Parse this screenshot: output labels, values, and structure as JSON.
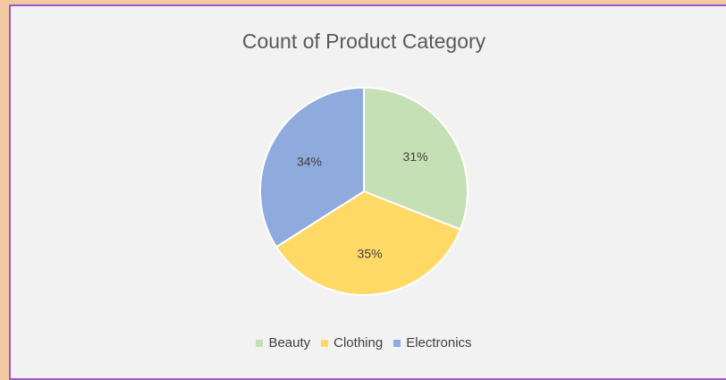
{
  "chart_data": {
    "type": "pie",
    "title": "Count of Product Category",
    "categories": [
      "Beauty",
      "Clothing",
      "Electronics"
    ],
    "values": [
      31,
      35,
      34
    ],
    "labels": [
      "31%",
      "35%",
      "34%"
    ],
    "colors": [
      "#c5e0b4",
      "#ffd966",
      "#8faadc"
    ],
    "legend_position": "bottom"
  }
}
